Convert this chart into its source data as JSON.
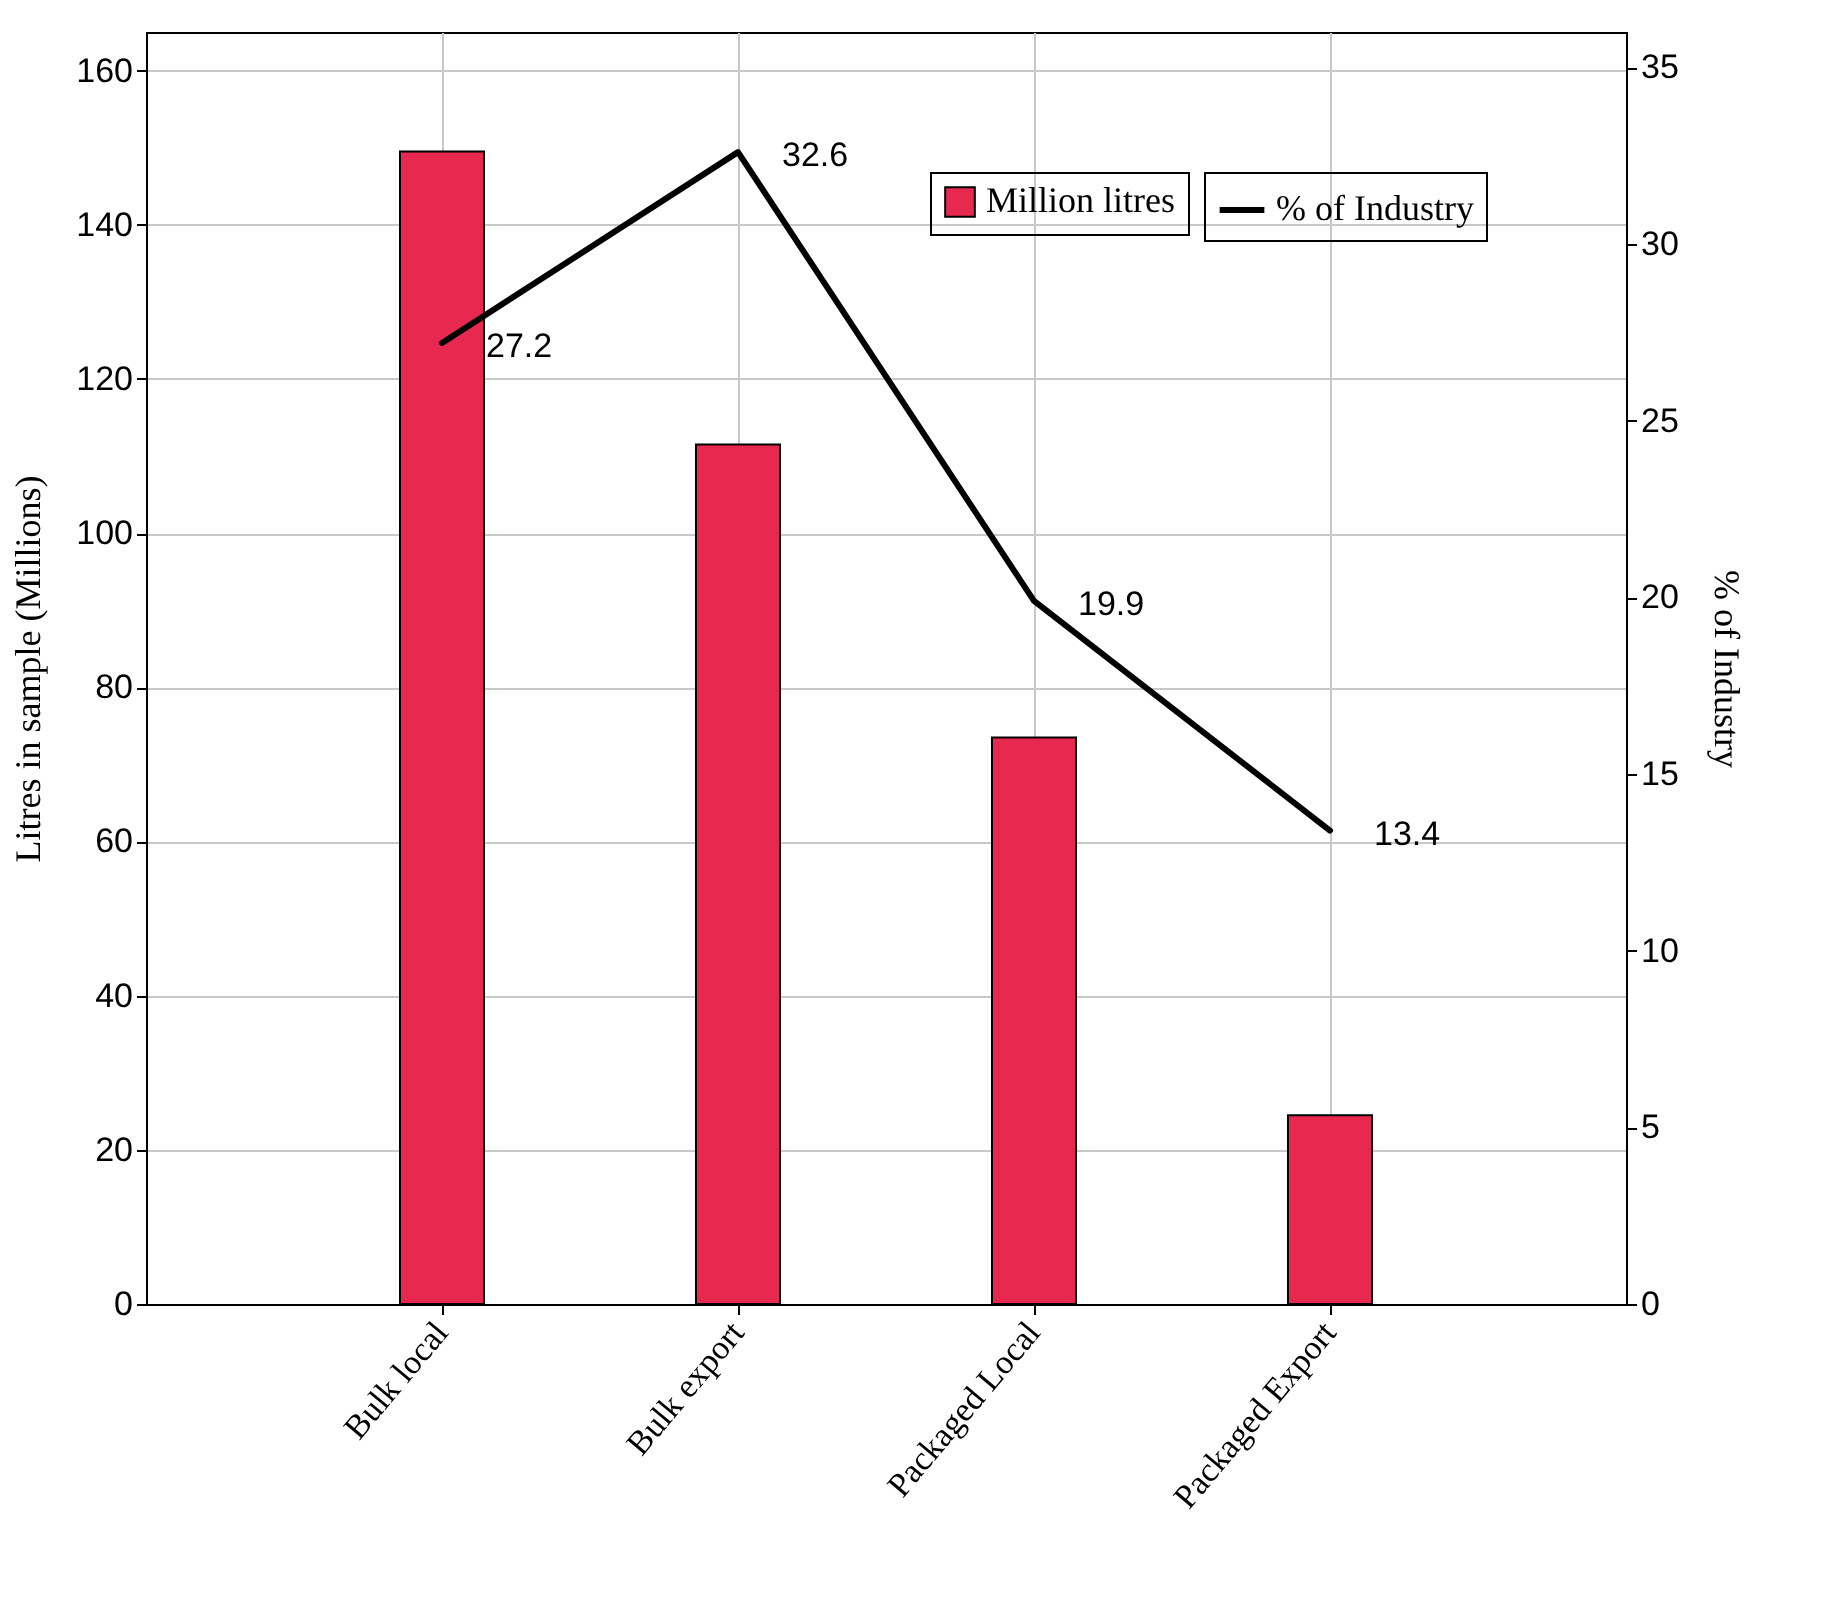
{
  "chart_data": {
    "type": "bar",
    "categories": [
      "Bulk local",
      "Bulk export",
      "Packaged Local",
      "Packaged Export"
    ],
    "ylabel": "Litres in sample (Millions)",
    "y2label": "% of Industry",
    "ylim": [
      0,
      165
    ],
    "yticks": [
      0,
      20,
      40,
      60,
      80,
      100,
      120,
      140,
      160
    ],
    "y2lim": [
      0,
      36
    ],
    "y2ticks": [
      0,
      5,
      10,
      15,
      20,
      25,
      30,
      35
    ],
    "grid": true,
    "legend": "top right",
    "series": [
      {
        "name": "Million litres",
        "color": "#e8294f",
        "values": [
          149.5,
          111.5,
          73.5,
          24.5
        ]
      },
      {
        "name": "% of Industry",
        "type": "line",
        "axis": "y2",
        "color": "#000000",
        "values": [
          27.2,
          32.6,
          19.9,
          13.4
        ],
        "value_labels": [
          "27.2",
          "32.6",
          "19.9",
          "13.4"
        ]
      }
    ]
  }
}
